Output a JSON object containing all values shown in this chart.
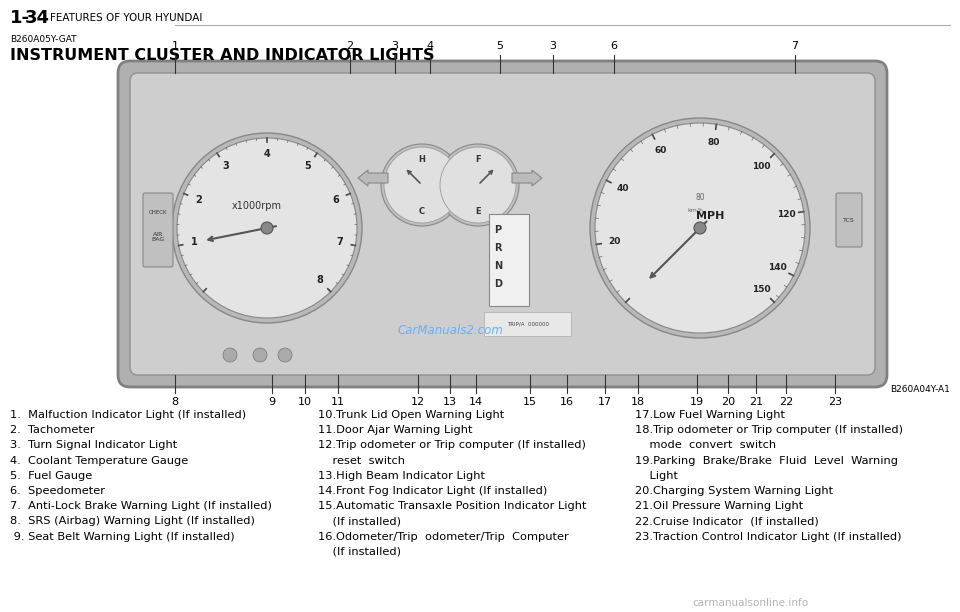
{
  "bg_color": "#ffffff",
  "page_header_bold": "1-34",
  "page_header_text": "FEATURES OF YOUR HYUNDAI",
  "section_code": "B260A05Y-GAT",
  "section_title": "INSTRUMENT CLUSTER AND INDICATOR LIGHTS",
  "ref_code": "B260A04Y-A1",
  "watermark_text": "CarManuals2.com",
  "footer_text": "carmanualsonline.info",
  "header_line_color": "#aaaaaa",
  "text_color": "#000000",
  "cluster_bg": "#c8c8c8",
  "cluster_face": "#d8d8d8",
  "gauge_face": "#e0e0e0",
  "callout_top_nums": [
    "1",
    "2",
    "3",
    "4",
    "5",
    "3",
    "6",
    "7"
  ],
  "callout_top_xpx": [
    175,
    350,
    395,
    430,
    500,
    553,
    614,
    795
  ],
  "callout_bot_nums": [
    "8",
    "9",
    "10",
    "11",
    "12",
    "13",
    "14",
    "15",
    "16",
    "17",
    "18",
    "19",
    "20",
    "21",
    "22",
    "23"
  ],
  "callout_bot_xpx": [
    175,
    272,
    305,
    338,
    418,
    450,
    476,
    530,
    567,
    605,
    638,
    697,
    728,
    756,
    786,
    835
  ],
  "items_col1": [
    "1.  Malfuction Indicator Light (If installed)",
    "2.  Tachometer",
    "3.  Turn Signal Indicator Light",
    "4.  Coolant Temperature Gauge",
    "5.  Fuel Gauge",
    "6.  Speedometer",
    "7.  Anti-Lock Brake Warning Light (If installed)",
    "8.  SRS (Airbag) Warning Light (If installed)",
    " 9. Seat Belt Warning Light (If installed)"
  ],
  "items_col2": [
    "10.Trunk Lid Open Warning Light",
    "11.Door Ajar Warning Light",
    "12.Trip odometer or Trip computer (If installed)",
    "    reset  switch",
    "13.High Beam Indicator Light",
    "14.Front Fog Indicator Light (If installed)",
    "15.Automatic Transaxle Position Indicator Light",
    "    (If installed)",
    "16.Odometer/Trip  odometer/Trip  Computer",
    "    (If installed)"
  ],
  "items_col3": [
    "17.Low Fuel Warning Light",
    "18.Trip odometer or Trip computer (If installed)",
    "    mode  convert  switch",
    "19.Parking  Brake/Brake  Fluid  Level  Warning",
    "    Light",
    "20.Charging System Warning Light",
    "21.Oil Pressure Warning Light",
    "22.Cruise Indicator  (If installed)",
    "23.Traction Control Indicator Light (If installed)"
  ],
  "font_size_items": 8.2,
  "font_size_callout": 8.0,
  "font_size_ref": 6.5
}
